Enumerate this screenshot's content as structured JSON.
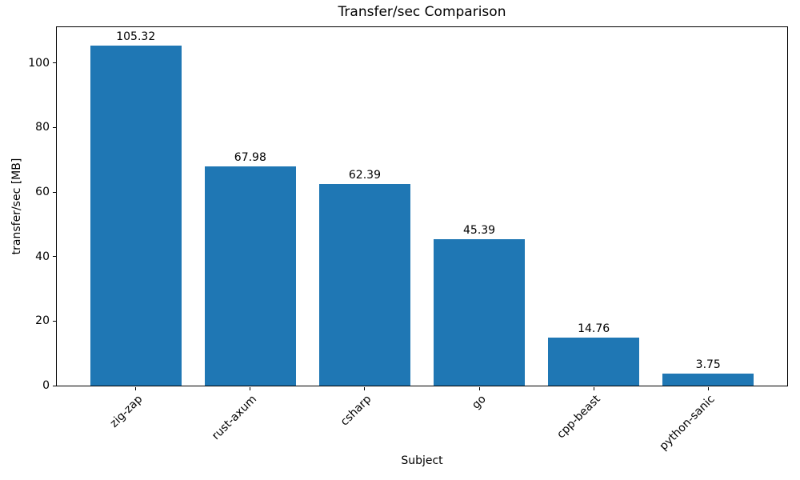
{
  "chart_data": {
    "type": "bar",
    "title": "Transfer/sec Comparison",
    "xlabel": "Subject",
    "ylabel": "transfer/sec [MB]",
    "categories": [
      "zig-zap",
      "rust-axum",
      "csharp",
      "go",
      "cpp-beast",
      "python-sanic"
    ],
    "values": [
      105.32,
      67.98,
      62.39,
      45.39,
      14.76,
      3.75
    ],
    "bar_labels": [
      "105.32",
      "67.98",
      "62.39",
      "45.39",
      "14.76",
      "3.75"
    ],
    "yticks": [
      0,
      20,
      40,
      60,
      80,
      100
    ],
    "ylim": [
      0,
      111.1
    ],
    "xtick_rotation_deg": 45,
    "bar_color": "#1f77b4",
    "axis_color": "#000000",
    "text_color": "#000000",
    "background_color": "#ffffff",
    "grid": false,
    "legend": null
  }
}
